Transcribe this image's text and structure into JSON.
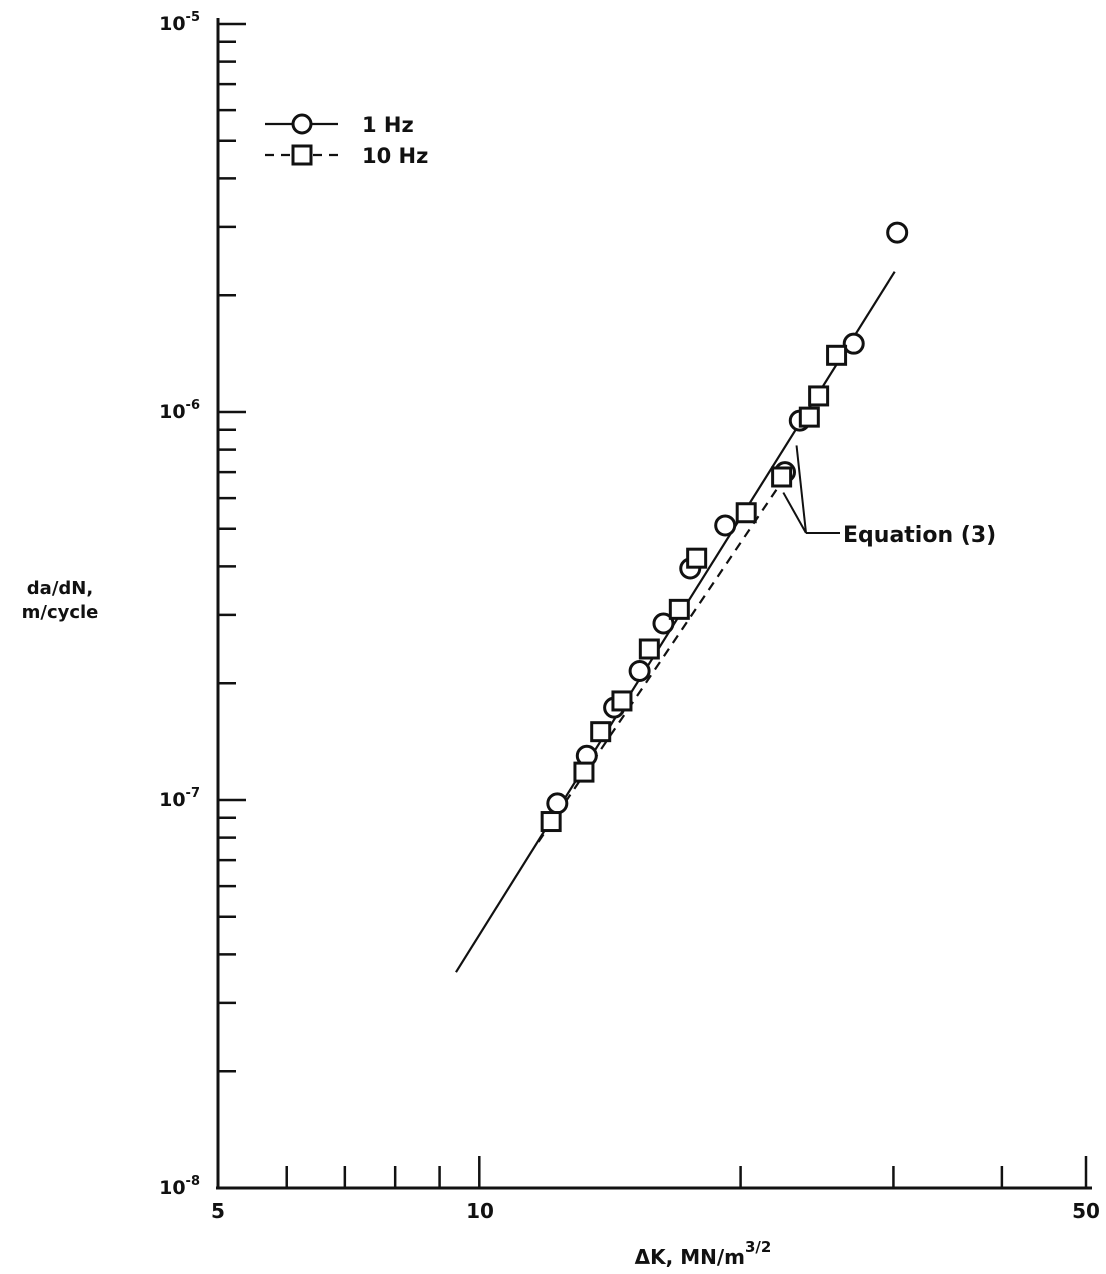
{
  "chart_data": {
    "type": "scatter",
    "title": "",
    "xlabel": "ΔK, MN/m",
    "xlabel_sup": "3/2",
    "ylabel_line1": "da/dN,",
    "ylabel_line2": "m/cycle",
    "x_scale": "log",
    "y_scale": "log",
    "xlim": [
      5,
      50
    ],
    "ylim": [
      1e-08,
      1e-05
    ],
    "grid": false,
    "legend_position": "top-left",
    "x_tick_labels": [
      {
        "value": 5,
        "label": "5"
      },
      {
        "value": 10,
        "label": "10"
      },
      {
        "value": 50,
        "label": "50"
      }
    ],
    "x_minor_ticks": [
      6,
      7,
      8,
      9,
      20,
      30,
      40
    ],
    "y_tick_labels": [
      {
        "value": 1e-08,
        "base": "10",
        "exp": "-8"
      },
      {
        "value": 1e-07,
        "base": "10",
        "exp": "-7"
      },
      {
        "value": 1e-06,
        "base": "10",
        "exp": "-6"
      },
      {
        "value": 1e-05,
        "base": "10",
        "exp": "-5"
      }
    ],
    "series": [
      {
        "name": "1 Hz",
        "marker": "circle",
        "line": "solid",
        "x": [
          12.3,
          13.3,
          14.3,
          15.3,
          16.3,
          17.5,
          19.2,
          22.5,
          23.4,
          27.0,
          30.3
        ],
        "y": [
          9.8e-08,
          1.3e-07,
          1.73e-07,
          2.15e-07,
          2.85e-07,
          3.95e-07,
          5.1e-07,
          7e-07,
          9.5e-07,
          1.5e-06,
          2.9e-06
        ]
      },
      {
        "name": "10 Hz",
        "marker": "square",
        "line": "dashed",
        "x": [
          12.1,
          13.2,
          13.8,
          14.6,
          15.7,
          17.0,
          17.8,
          20.3,
          22.3,
          24.0,
          24.6,
          25.8
        ],
        "y": [
          8.8e-08,
          1.18e-07,
          1.5e-07,
          1.8e-07,
          2.45e-07,
          3.1e-07,
          4.2e-07,
          5.5e-07,
          6.8e-07,
          9.7e-07,
          1.1e-06,
          1.4e-06
        ]
      }
    ],
    "fit_lines": [
      {
        "name": "1 Hz fit",
        "style": "solid",
        "x": [
          9.4,
          30.1
        ],
        "y": [
          3.6e-08,
          2.3e-06
        ]
      },
      {
        "name": "10 Hz fit",
        "style": "dashed",
        "x": [
          11.7,
          22.6
        ],
        "y": [
          7.8e-08,
          6.9e-07
        ]
      }
    ],
    "annotations": [
      {
        "text": "Equation (3)",
        "points_to_x": [
          23.2,
          22.4
        ],
        "points_to_y": [
          8.2e-07,
          6.2e-07
        ]
      }
    ]
  }
}
